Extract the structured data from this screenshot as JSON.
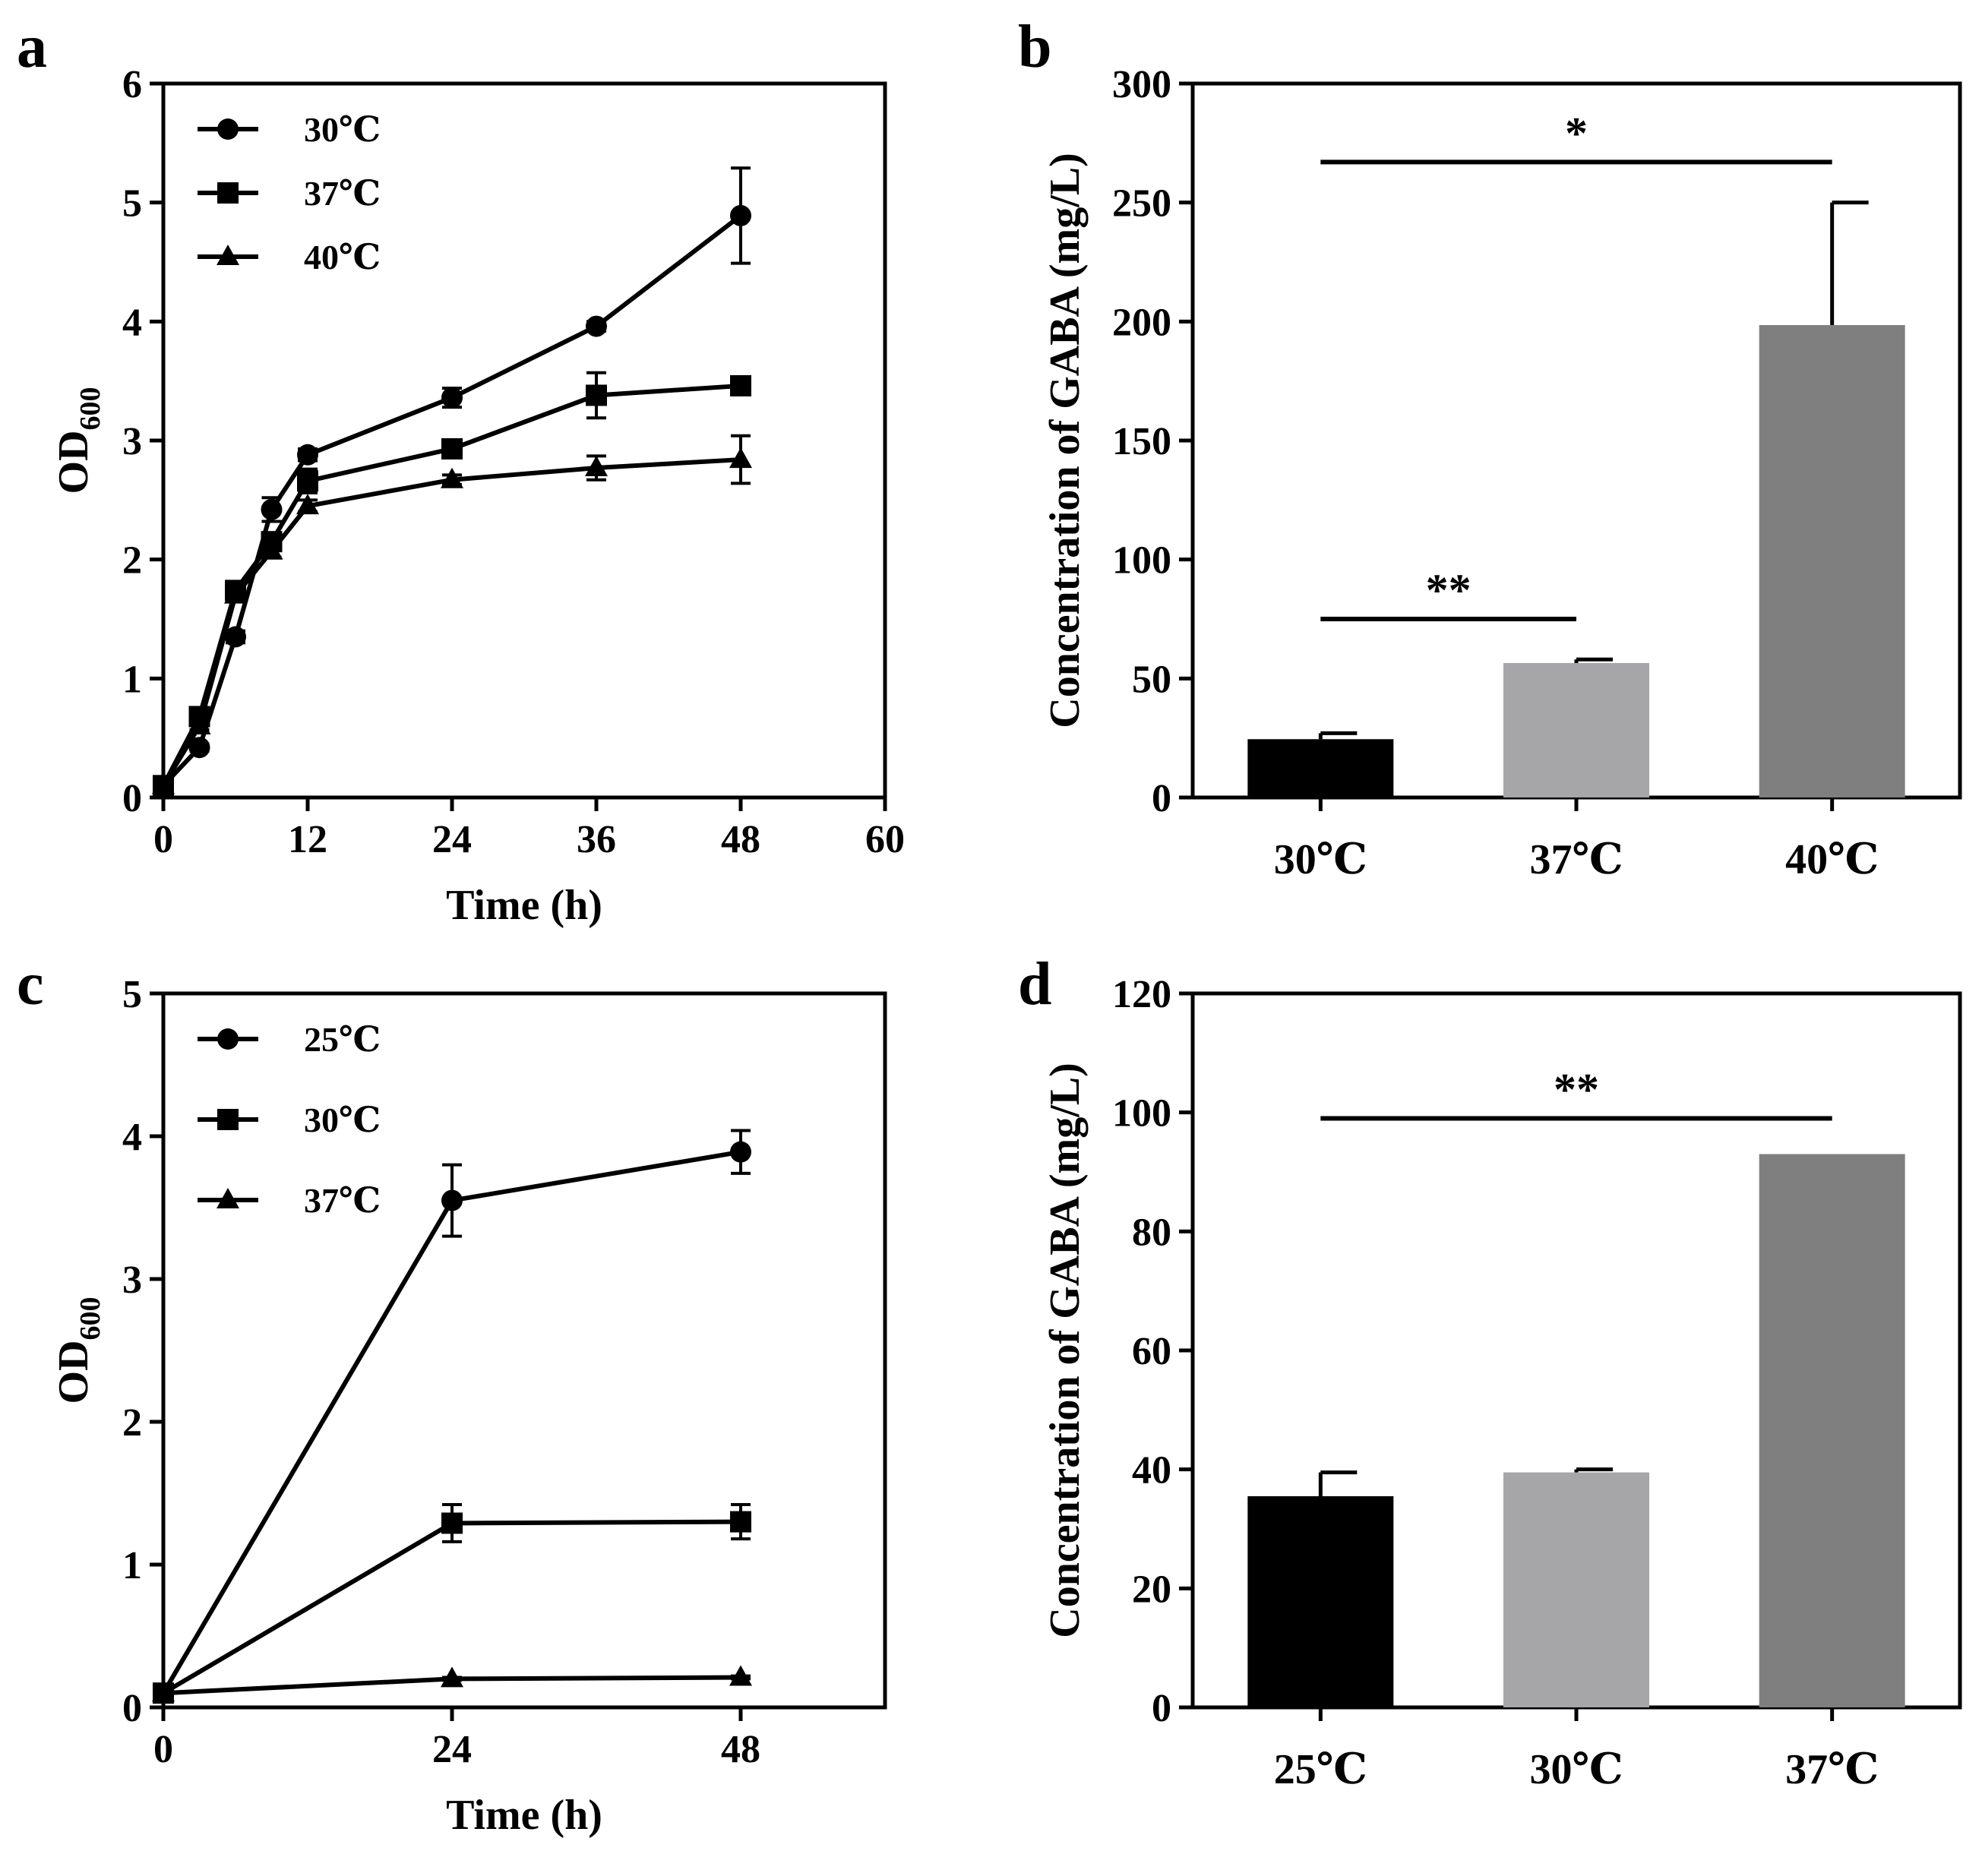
{
  "figure": {
    "panels": [
      "a",
      "b",
      "c",
      "d"
    ]
  },
  "chart_data": [
    {
      "panel": "a",
      "type": "line",
      "xlabel": "Time (h)",
      "ylabel_main": "OD",
      "ylabel_sub": "600",
      "xlim": [
        0,
        60
      ],
      "ylim": [
        0,
        6
      ],
      "xticks": [
        0,
        12,
        24,
        36,
        48,
        60
      ],
      "yticks": [
        0,
        1,
        2,
        3,
        4,
        5,
        6
      ],
      "legend_position": "top-left",
      "series": [
        {
          "name": "30℃",
          "marker": "circle",
          "x": [
            0,
            3,
            6,
            9,
            12,
            24,
            36,
            48
          ],
          "y": [
            0.1,
            0.42,
            1.35,
            2.42,
            2.88,
            3.36,
            3.96,
            4.89
          ],
          "err": [
            0,
            0.03,
            0.05,
            0.1,
            0.05,
            0.08,
            0.04,
            0.4
          ]
        },
        {
          "name": "37℃",
          "marker": "square",
          "x": [
            0,
            3,
            6,
            9,
            12,
            24,
            36,
            48
          ],
          "y": [
            0.1,
            0.68,
            1.74,
            2.15,
            2.66,
            2.93,
            3.38,
            3.46
          ],
          "err": [
            0,
            0.04,
            0.04,
            0.05,
            0.1,
            0.04,
            0.19,
            0.05
          ]
        },
        {
          "name": "40℃",
          "marker": "triangle",
          "x": [
            0,
            3,
            6,
            9,
            12,
            24,
            36,
            48
          ],
          "y": [
            0.1,
            0.6,
            1.7,
            2.07,
            2.45,
            2.67,
            2.77,
            2.84
          ],
          "err": [
            0,
            0.03,
            0.04,
            0.05,
            0.05,
            0.04,
            0.1,
            0.2
          ]
        }
      ]
    },
    {
      "panel": "b",
      "type": "bar",
      "ylabel": "Concentration of GABA (mg/L)",
      "ylim": [
        0,
        300
      ],
      "yticks": [
        0,
        50,
        100,
        150,
        200,
        250,
        300
      ],
      "categories": [
        "30℃",
        "37℃",
        "40℃"
      ],
      "values": [
        24.5,
        56.5,
        198.5
      ],
      "errors": [
        2.5,
        1.5,
        51.5
      ],
      "colors": [
        "#000000",
        "#a6a5a8",
        "#7f7f7f"
      ],
      "significance": [
        {
          "from": 0,
          "to": 1,
          "y": 75,
          "label": "**"
        },
        {
          "from": 0,
          "to": 2,
          "y": 267,
          "label": "*"
        }
      ]
    },
    {
      "panel": "c",
      "type": "line",
      "xlabel": "Time (h)",
      "ylabel_main": "OD",
      "ylabel_sub": "600",
      "xlim": [
        0,
        60
      ],
      "ylim": [
        0,
        5
      ],
      "xticks": [
        0,
        24,
        48
      ],
      "yticks": [
        0,
        1,
        2,
        3,
        4,
        5
      ],
      "legend_position": "top-left",
      "series": [
        {
          "name": "25℃",
          "marker": "circle",
          "x": [
            0,
            24,
            48
          ],
          "y": [
            0.1,
            3.55,
            3.89
          ],
          "err": [
            0,
            0.25,
            0.15
          ]
        },
        {
          "name": "30℃",
          "marker": "square",
          "x": [
            0,
            24,
            48
          ],
          "y": [
            0.1,
            1.29,
            1.3
          ],
          "err": [
            0,
            0.13,
            0.12
          ]
        },
        {
          "name": "37℃",
          "marker": "triangle",
          "x": [
            0,
            24,
            48
          ],
          "y": [
            0.1,
            0.2,
            0.21
          ],
          "err": [
            0,
            0.01,
            0.01
          ]
        }
      ]
    },
    {
      "panel": "d",
      "type": "bar",
      "ylabel": "Concentration of GABA (mg/L)",
      "ylim": [
        0,
        120
      ],
      "yticks": [
        0,
        20,
        40,
        60,
        80,
        100,
        120
      ],
      "categories": [
        "25℃",
        "30℃",
        "37℃"
      ],
      "values": [
        35.5,
        39.5,
        93
      ],
      "errors": [
        4,
        0.5,
        0
      ],
      "colors": [
        "#000000",
        "#a6a5a8",
        "#7f7f7f"
      ],
      "significance": [
        {
          "from": 0,
          "to": 2,
          "y": 99,
          "label": "**"
        }
      ]
    }
  ]
}
